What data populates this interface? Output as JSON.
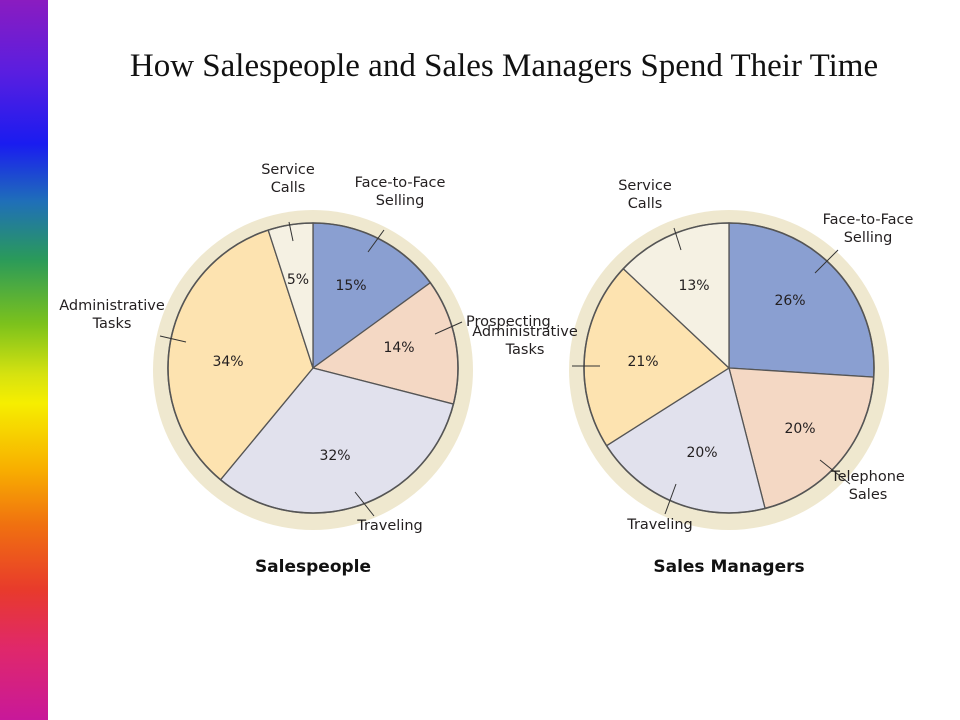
{
  "slide": {
    "title": "How Salespeople and Sales Managers Spend Their Time"
  },
  "colors": {
    "face_to_face": "#8a9fd1",
    "prospecting": "#f4d8c4",
    "telephone": "#f4d8c4",
    "traveling": "#e1e1ed",
    "administrative": "#fde3b0",
    "service": "#f5f1e3",
    "outline": "#555555",
    "shadow": "#efe8cf"
  },
  "chart_data": [
    {
      "type": "pie",
      "title": "Salespeople",
      "slices": [
        {
          "label": [
            "Face-to-Face",
            "Selling"
          ],
          "value": 15,
          "value_label": "15%",
          "color": "#8a9fd1"
        },
        {
          "label": [
            "Prospecting"
          ],
          "value": 14,
          "value_label": "14%",
          "color": "#f4d8c4"
        },
        {
          "label": [
            "Traveling"
          ],
          "value": 32,
          "value_label": "32%",
          "color": "#e1e1ed"
        },
        {
          "label": [
            "Administrative",
            "Tasks"
          ],
          "value": 34,
          "value_label": "34%",
          "color": "#fde3b0"
        },
        {
          "label": [
            "Service",
            "Calls"
          ],
          "value": 5,
          "value_label": "5%",
          "color": "#f5f1e3"
        }
      ]
    },
    {
      "type": "pie",
      "title": "Sales Managers",
      "slices": [
        {
          "label": [
            "Face-to-Face",
            "Selling"
          ],
          "value": 26,
          "value_label": "26%",
          "color": "#8a9fd1"
        },
        {
          "label": [
            "Telephone",
            "Sales"
          ],
          "value": 20,
          "value_label": "20%",
          "color": "#f4d8c4"
        },
        {
          "label": [
            "Traveling"
          ],
          "value": 20,
          "value_label": "20%",
          "color": "#e1e1ed"
        },
        {
          "label": [
            "Administrative",
            "Tasks"
          ],
          "value": 21,
          "value_label": "21%",
          "color": "#fde3b0"
        },
        {
          "label": [
            "Service",
            "Calls"
          ],
          "value": 13,
          "value_label": "13%",
          "color": "#f5f1e3"
        }
      ]
    }
  ]
}
